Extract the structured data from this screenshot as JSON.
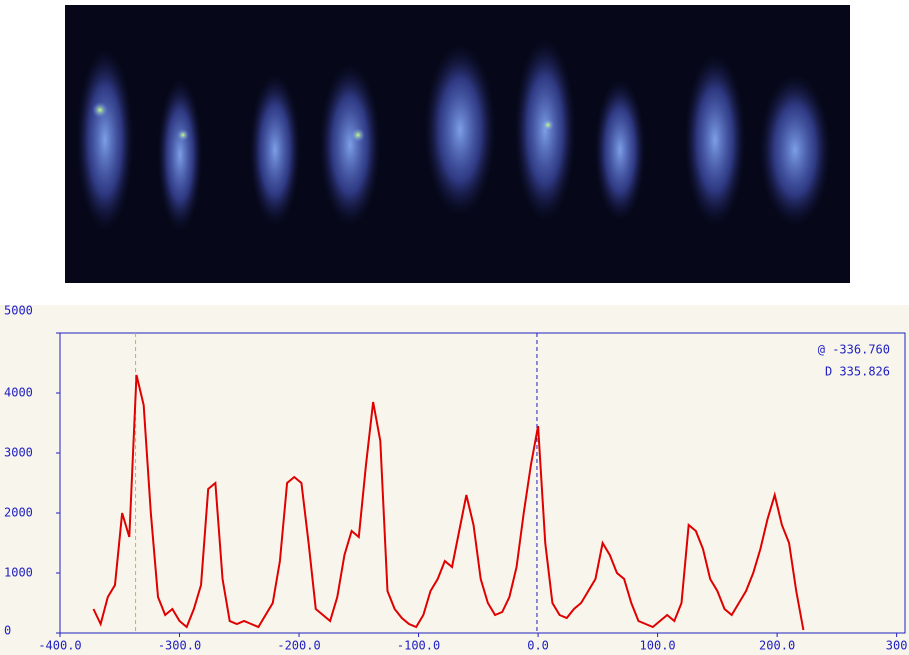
{
  "chart_data": {
    "type": "line",
    "annotations": [
      "@ -336.760",
      "D 335.826"
    ],
    "x": [
      -372,
      -366,
      -360,
      -354,
      -348,
      -342,
      -336,
      -330,
      -324,
      -318,
      -312,
      -306,
      -300,
      -294,
      -288,
      -282,
      -276,
      -270,
      -264,
      -258,
      -252,
      -246,
      -240,
      -234,
      -228,
      -222,
      -216,
      -210,
      -204,
      -198,
      -192,
      -186,
      -180,
      -174,
      -168,
      -162,
      -156,
      -150,
      -144,
      -138,
      -132,
      -126,
      -120,
      -114,
      -108,
      -102,
      -96,
      -90,
      -84,
      -78,
      -72,
      -66,
      -60,
      -54,
      -48,
      -42,
      -36,
      -30,
      -24,
      -18,
      -12,
      -6,
      0,
      6,
      12,
      18,
      24,
      30,
      36,
      42,
      48,
      54,
      60,
      66,
      72,
      78,
      84,
      90,
      96,
      102,
      108,
      114,
      120,
      126,
      132,
      138,
      144,
      150,
      156,
      162,
      168,
      174,
      180,
      186,
      192,
      198,
      204,
      210,
      216,
      222
    ],
    "series": [
      {
        "color": "#e00000",
        "values": [
          400,
          150,
          600,
          800,
          2000,
          1600,
          4300,
          3800,
          2000,
          600,
          300,
          400,
          200,
          100,
          400,
          800,
          2400,
          2500,
          900,
          200,
          150,
          200,
          150,
          100,
          300,
          500,
          1200,
          2500,
          2600,
          2500,
          1500,
          400,
          300,
          200,
          600,
          1300,
          1700,
          1600,
          2800,
          3850,
          3200,
          700,
          400,
          250,
          150,
          100,
          300,
          700,
          900,
          1200,
          1100,
          1700,
          2300,
          1800,
          900,
          500,
          300,
          350,
          600,
          1100,
          2000,
          2800,
          3450,
          1500,
          500,
          300,
          250,
          400,
          500,
          700,
          900,
          1500,
          1300,
          1000,
          900,
          500,
          200,
          150,
          100,
          200,
          300,
          200,
          500,
          1800,
          1700,
          1400,
          900,
          700,
          400,
          300,
          500,
          700,
          1000,
          1400,
          1900,
          2300,
          1800,
          1500,
          700,
          50
        ]
      }
    ],
    "markers": [
      {
        "value": -336.76,
        "color": "#f0a030"
      },
      {
        "value": -0.934,
        "color": "#2020c0"
      }
    ],
    "xlim": [
      -400,
      307
    ],
    "ylim": [
      0,
      5000
    ],
    "xticks": [
      {
        "value": -400,
        "label": "-400.0"
      },
      {
        "value": -300,
        "label": "-300.0"
      },
      {
        "value": -200,
        "label": "-200.0"
      },
      {
        "value": -100,
        "label": "-100.0"
      },
      {
        "value": 0,
        "label": "0.0"
      },
      {
        "value": 100,
        "label": "100.0"
      },
      {
        "value": 200,
        "label": "200.0"
      },
      {
        "value": 300,
        "label": "300"
      }
    ],
    "yticks": [
      0,
      1000,
      2000,
      3000,
      4000,
      5000
    ]
  }
}
